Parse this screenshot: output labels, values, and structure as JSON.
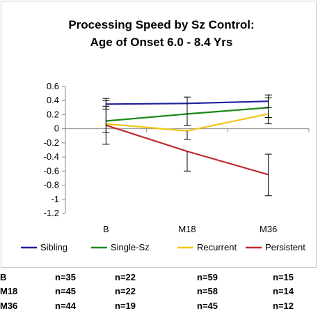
{
  "chart_data": {
    "type": "line",
    "title_lines": [
      "Processing Speed by Sz Control:",
      "Age of Onset 6.0 - 8.4 Yrs"
    ],
    "categories": [
      "B",
      "M18",
      "M36"
    ],
    "ylim": [
      -1.2,
      0.6
    ],
    "yticks": [
      0.6,
      0.4,
      0.2,
      0,
      -0.2,
      -0.4,
      -0.6,
      -0.8,
      -1,
      -1.2
    ],
    "ytick_labels": [
      "0.6",
      "0.4",
      "0.2",
      "0",
      "-0.2",
      "-0.4",
      "-0.6",
      "-0.8",
      "-1",
      "-1.2"
    ],
    "grid": false,
    "legend_position": "bottom",
    "series": [
      {
        "name": "Sibling",
        "color": "#1f1f9e",
        "values": [
          0.35,
          0.36,
          0.39
        ],
        "err_low": [
          0.28,
          null,
          0.3
        ],
        "err_high": [
          0.43,
          null,
          0.48
        ]
      },
      {
        "name": "Single-Sz",
        "color": "#1a8a1a",
        "values": [
          0.11,
          0.21,
          0.3
        ],
        "err_low": [
          -0.05,
          0.05,
          0.16
        ],
        "err_high": [
          0.32,
          0.45,
          0.44
        ]
      },
      {
        "name": "Recurrent",
        "color": "#f0c419",
        "values": [
          0.07,
          -0.03,
          0.21
        ],
        "err_low": [
          -0.22,
          -0.15,
          0.07
        ],
        "err_high": [
          0.4,
          null,
          null
        ]
      },
      {
        "name": "Persistent",
        "color": "#c0282d",
        "values": [
          0.05,
          -0.32,
          -0.65
        ],
        "err_low": [
          null,
          -0.6,
          -0.95
        ],
        "err_high": [
          null,
          null,
          -0.36
        ]
      }
    ]
  },
  "n_table": {
    "rows": [
      {
        "label": "B",
        "cells": [
          "n=35",
          "n=22",
          "n=59",
          "n=15"
        ]
      },
      {
        "label": "M18",
        "cells": [
          "n=45",
          "n=22",
          "n=58",
          "n=14"
        ]
      },
      {
        "label": "M36",
        "cells": [
          "n=44",
          "n=19",
          "n=45",
          "n=12"
        ]
      }
    ]
  }
}
